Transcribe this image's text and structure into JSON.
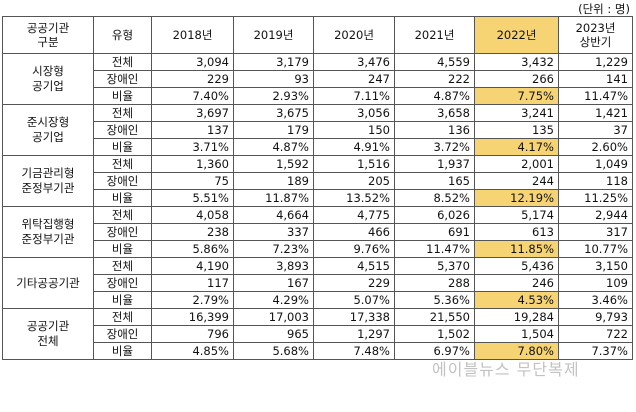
{
  "unit_note": "(단위 : 명)",
  "headers": {
    "group": [
      "공공기관",
      "구분"
    ],
    "type": "유형",
    "years": [
      "2018년",
      "2019년",
      "2020년",
      "2021년",
      "2022년"
    ],
    "last": [
      "2023년",
      "상반기"
    ]
  },
  "highlight_color": "#f6d474",
  "groups": [
    {
      "name": [
        "시장형",
        "공기업"
      ],
      "rows": [
        {
          "type": "전체",
          "values": [
            "3,094",
            "3,179",
            "3,476",
            "4,559",
            "3,432",
            "1,229"
          ]
        },
        {
          "type": "장애인",
          "values": [
            "229",
            "93",
            "247",
            "222",
            "266",
            "141"
          ]
        },
        {
          "type": "비율",
          "values": [
            "7.40%",
            "2.93%",
            "7.11%",
            "4.87%",
            "7.75%",
            "11.47%"
          ]
        }
      ]
    },
    {
      "name": [
        "준시장형",
        "공기업"
      ],
      "rows": [
        {
          "type": "전체",
          "values": [
            "3,697",
            "3,675",
            "3,056",
            "3,658",
            "3,241",
            "1,421"
          ]
        },
        {
          "type": "장애인",
          "values": [
            "137",
            "179",
            "150",
            "136",
            "135",
            "37"
          ]
        },
        {
          "type": "비율",
          "values": [
            "3.71%",
            "4.87%",
            "4.91%",
            "3.72%",
            "4.17%",
            "2.60%"
          ]
        }
      ]
    },
    {
      "name": [
        "기금관리형",
        "준정부기관"
      ],
      "rows": [
        {
          "type": "전체",
          "values": [
            "1,360",
            "1,592",
            "1,516",
            "1,937",
            "2,001",
            "1,049"
          ]
        },
        {
          "type": "장애인",
          "values": [
            "75",
            "189",
            "205",
            "165",
            "244",
            "118"
          ]
        },
        {
          "type": "비율",
          "values": [
            "5.51%",
            "11.87%",
            "13.52%",
            "8.52%",
            "12.19%",
            "11.25%"
          ]
        }
      ]
    },
    {
      "name": [
        "위탁집행형",
        "준정부기관"
      ],
      "rows": [
        {
          "type": "전체",
          "values": [
            "4,058",
            "4,664",
            "4,775",
            "6,026",
            "5,174",
            "2,944"
          ]
        },
        {
          "type": "장애인",
          "values": [
            "238",
            "337",
            "466",
            "691",
            "613",
            "317"
          ]
        },
        {
          "type": "비율",
          "values": [
            "5.86%",
            "7.23%",
            "9.76%",
            "11.47%",
            "11.85%",
            "10.77%"
          ]
        }
      ]
    },
    {
      "name": [
        "기타공공기관"
      ],
      "rows": [
        {
          "type": "전체",
          "values": [
            "4,190",
            "3,893",
            "4,515",
            "5,370",
            "5,436",
            "3,150"
          ]
        },
        {
          "type": "장애인",
          "values": [
            "117",
            "167",
            "229",
            "288",
            "246",
            "109"
          ]
        },
        {
          "type": "비율",
          "values": [
            "2.79%",
            "4.29%",
            "5.07%",
            "5.36%",
            "4.53%",
            "3.46%"
          ]
        }
      ]
    },
    {
      "name": [
        "공공기관",
        "전체"
      ],
      "rows": [
        {
          "type": "전체",
          "values": [
            "16,399",
            "17,003",
            "17,338",
            "21,550",
            "19,284",
            "9,793"
          ]
        },
        {
          "type": "장애인",
          "values": [
            "796",
            "965",
            "1,297",
            "1,502",
            "1,504",
            "722"
          ]
        },
        {
          "type": "비율",
          "values": [
            "4.85%",
            "5.68%",
            "7.48%",
            "6.97%",
            "7.80%",
            "7.37%"
          ]
        }
      ]
    }
  ],
  "watermark": "에이블뉴스 무단복제"
}
